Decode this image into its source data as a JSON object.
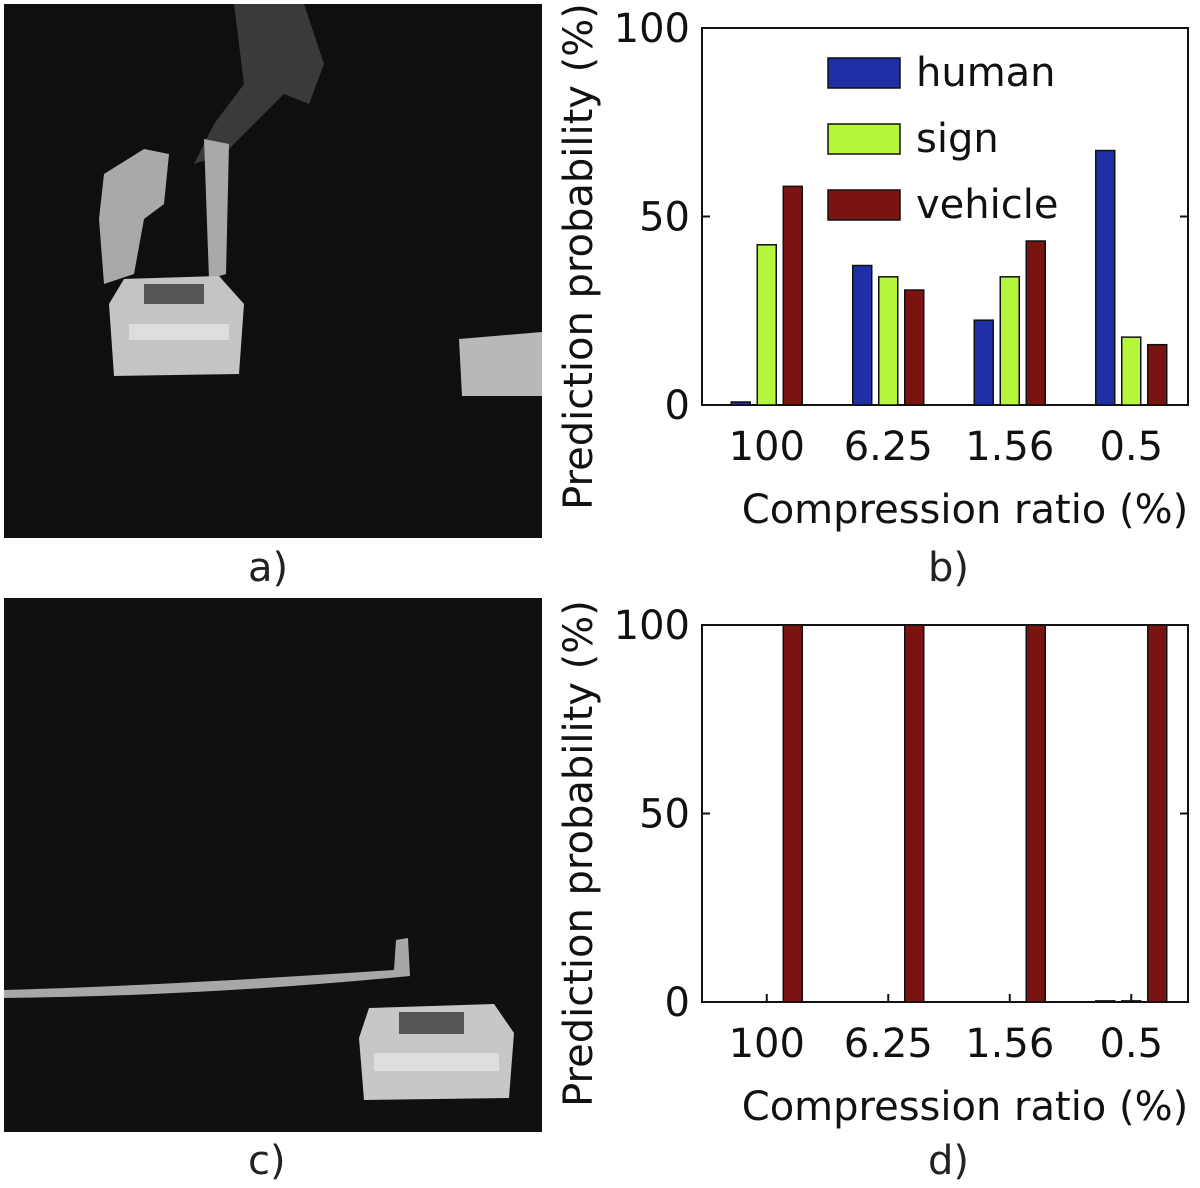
{
  "panels": {
    "a": {
      "label": "a)"
    },
    "b": {
      "label": "b)"
    },
    "c": {
      "label": "c)"
    },
    "d": {
      "label": "d)"
    }
  },
  "colors": {
    "human": "#1f2fa6",
    "sign": "#b5f53b",
    "vehicle": "#7a1410",
    "photo_bg": "#0f0f0f",
    "object_gray": "#b9b9b9"
  },
  "chart_data": [
    {
      "type": "bar",
      "panel": "b",
      "categories": [
        "100",
        "6.25",
        "1.56",
        "0.5"
      ],
      "series": [
        {
          "name": "human",
          "values": [
            0.8,
            37,
            22.5,
            67.5
          ]
        },
        {
          "name": "sign",
          "values": [
            42.5,
            34,
            34,
            18
          ]
        },
        {
          "name": "vehicle",
          "values": [
            58,
            30.5,
            43.5,
            16
          ]
        }
      ],
      "xlabel": "Compression ratio (%)",
      "ylabel": "Prediction probability (%)",
      "ylim": [
        0,
        100
      ],
      "yticks": [
        "0",
        "50",
        "100"
      ],
      "legend": "top-center",
      "grid": false
    },
    {
      "type": "bar",
      "panel": "d",
      "categories": [
        "100",
        "6.25",
        "1.56",
        "0.5"
      ],
      "series": [
        {
          "name": "human",
          "values": [
            0,
            0,
            0,
            0.3
          ]
        },
        {
          "name": "sign",
          "values": [
            0,
            0,
            0,
            0.3
          ]
        },
        {
          "name": "vehicle",
          "values": [
            100,
            100,
            100,
            100
          ]
        }
      ],
      "xlabel": "Compression ratio (%)",
      "ylabel": "Prediction probability (%)",
      "ylim": [
        0,
        100
      ],
      "yticks": [
        "0",
        "50",
        "100"
      ],
      "legend": "none",
      "grid": false
    }
  ]
}
